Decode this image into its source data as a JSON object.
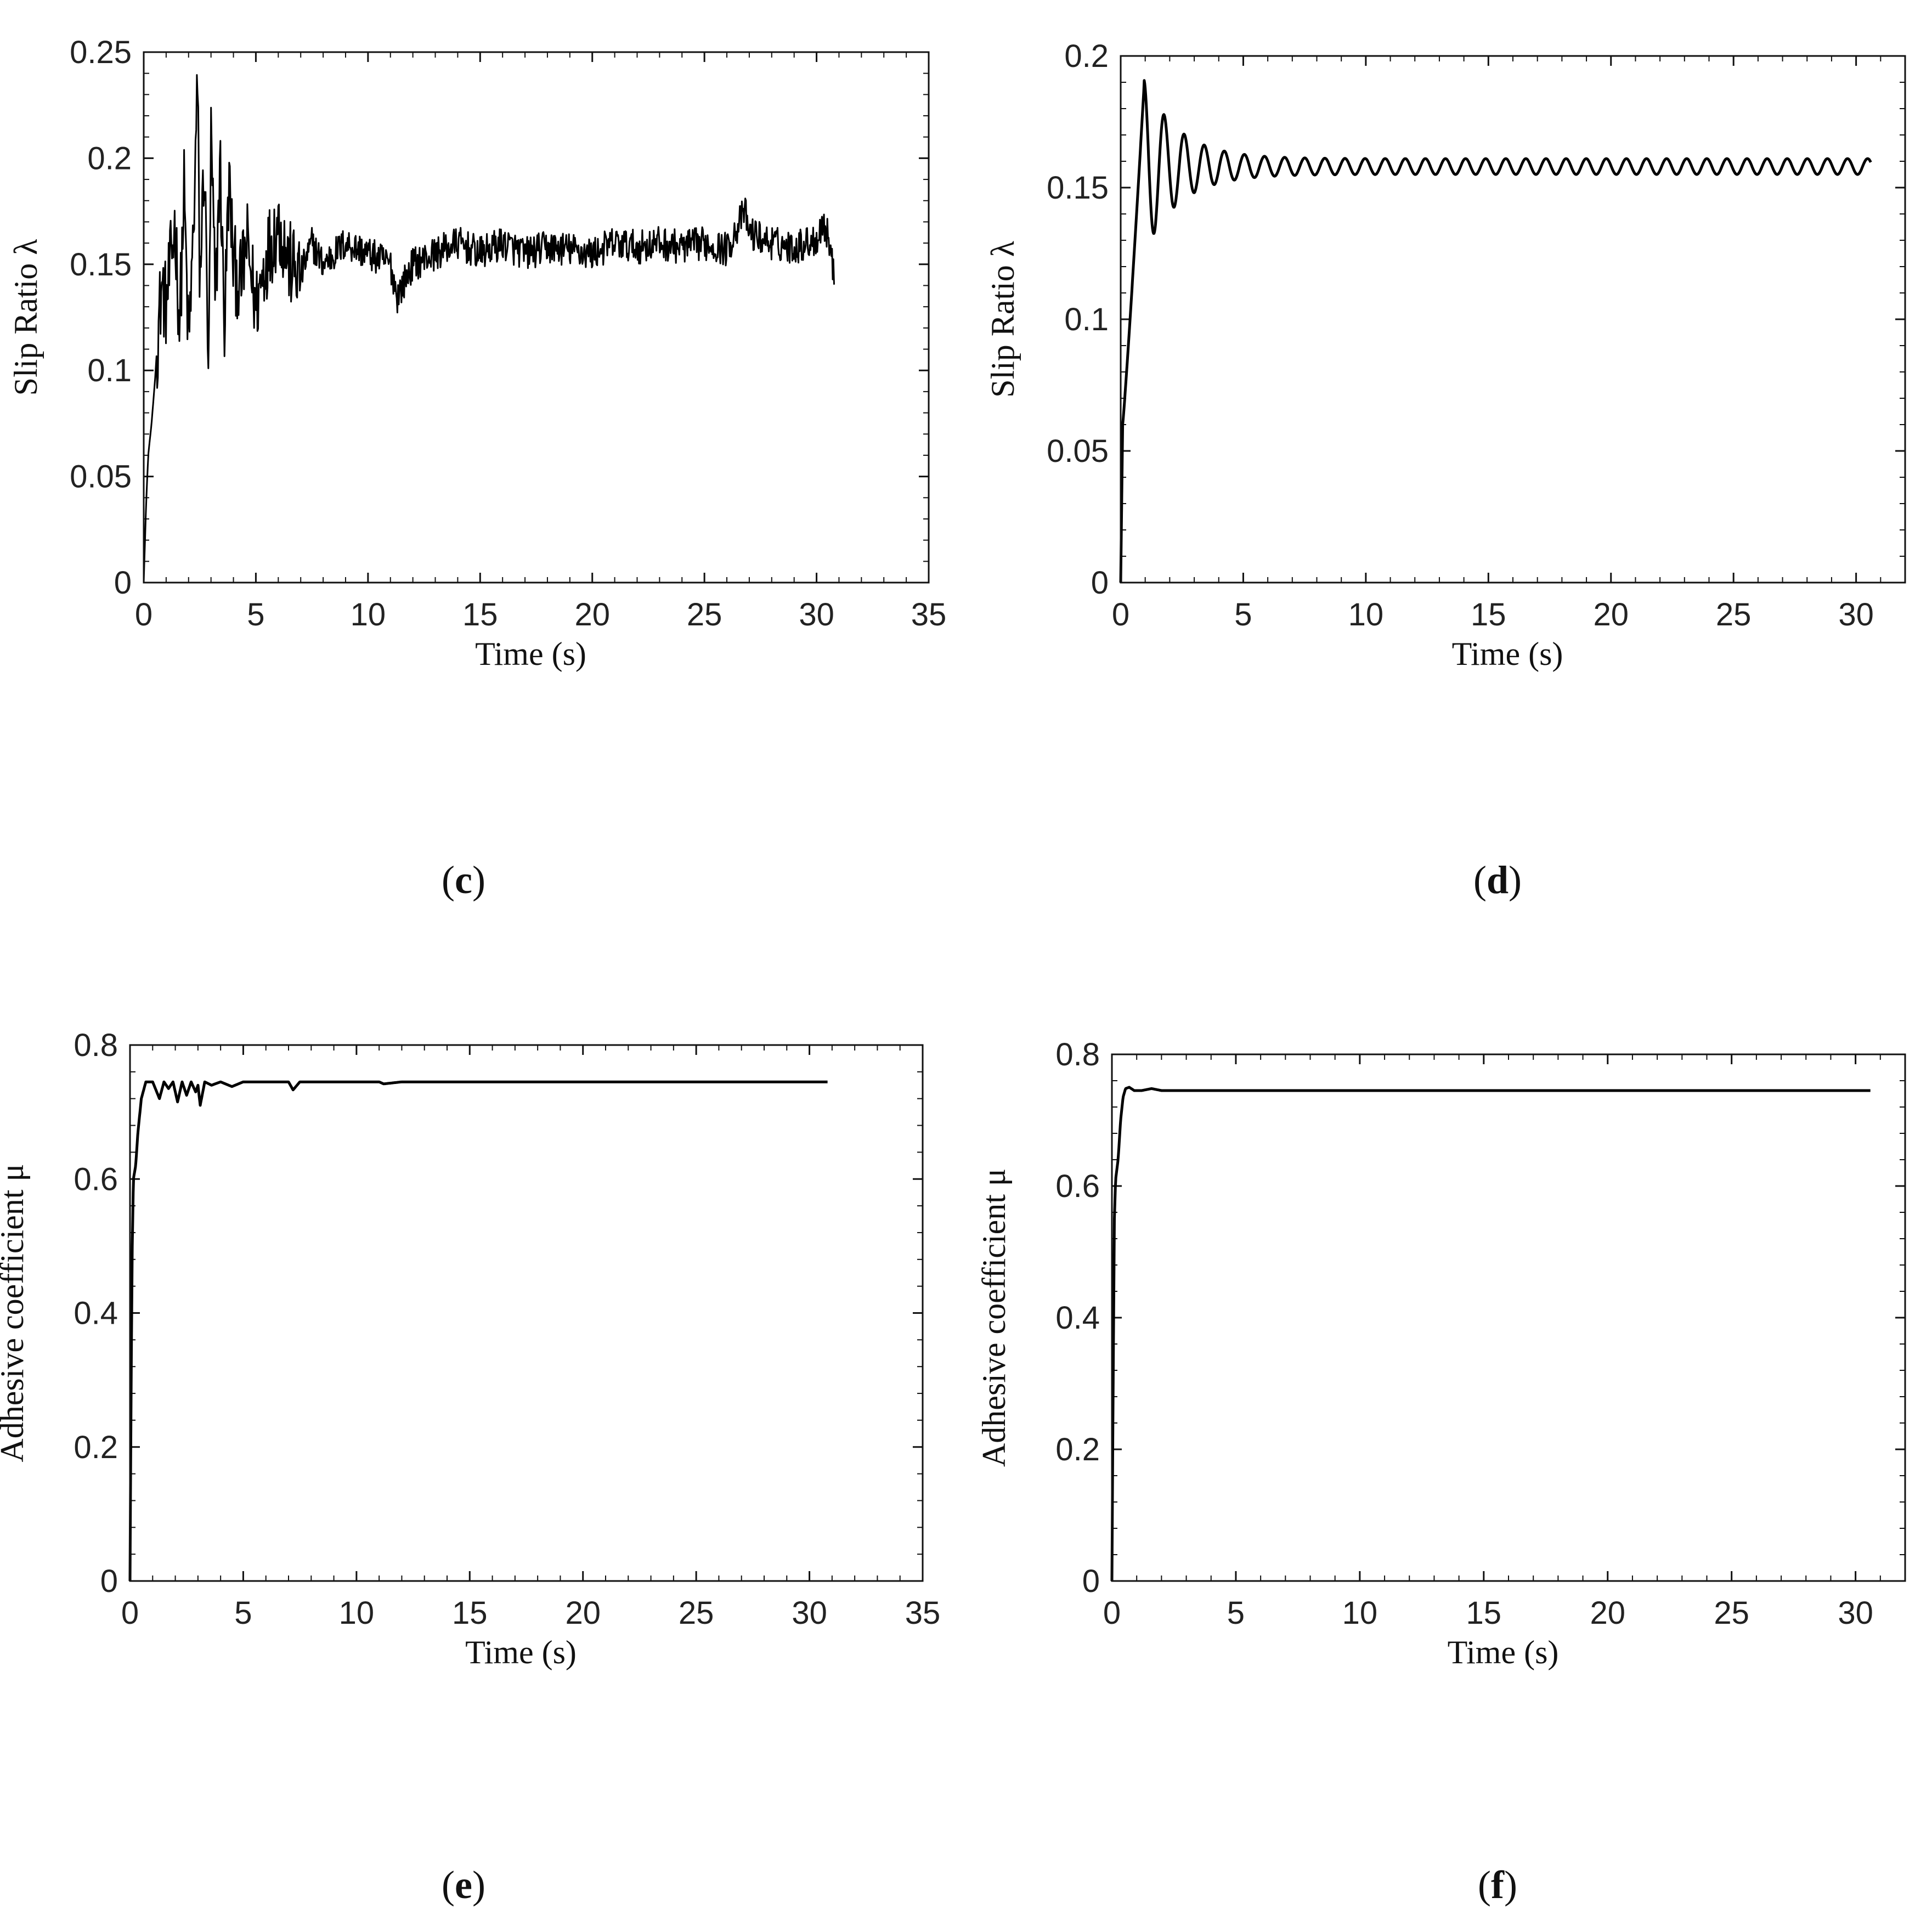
{
  "chart_data": [
    {
      "type": "line",
      "panel": "c",
      "xlabel": "Time (s)",
      "ylabel": "Slip Ratio λ",
      "xlim": [
        0,
        35
      ],
      "ylim": [
        0,
        0.25
      ],
      "xticks": [
        0,
        5,
        10,
        15,
        20,
        25,
        30,
        35
      ],
      "yticks": [
        0,
        0.05,
        0.1,
        0.15,
        0.2,
        0.25
      ],
      "xtick_labels": [
        "0",
        "5",
        "10",
        "15",
        "20",
        "25",
        "30",
        "35"
      ],
      "ytick_labels": [
        "0",
        "0.05",
        "0.1",
        "0.15",
        "0.2",
        "0.25"
      ],
      "grid": false,
      "series": [
        {
          "t_end": 30.8,
          "x": [
            0,
            0.1,
            0.2,
            0.35,
            0.5,
            0.65,
            0.8,
            1.0,
            1.2,
            1.4,
            1.6,
            1.8,
            2.0,
            2.2,
            2.4,
            2.5,
            2.7,
            2.9,
            3.0,
            3.2,
            3.4,
            3.6,
            3.8,
            4.0,
            4.3,
            4.6,
            5.0,
            5.5,
            6.0,
            6.5,
            7.0,
            7.5,
            8.0,
            9.0,
            10.0,
            11.0,
            11.3,
            12.0,
            13.0,
            14.0,
            15.0,
            16.0,
            17.0,
            18.0,
            19.0,
            20.0,
            21.0,
            22.0,
            23.0,
            24.0,
            25.0,
            26.0,
            26.8,
            27.0,
            28.0,
            29.0,
            29.5,
            30.0,
            30.3,
            30.6,
            30.8
          ],
          "y": [
            0,
            0.035,
            0.06,
            0.075,
            0.095,
            0.12,
            0.14,
            0.13,
            0.15,
            0.17,
            0.12,
            0.185,
            0.11,
            0.16,
            0.235,
            0.14,
            0.2,
            0.095,
            0.21,
            0.13,
            0.2,
            0.12,
            0.19,
            0.15,
            0.14,
            0.16,
            0.13,
            0.155,
            0.17,
            0.15,
            0.145,
            0.16,
            0.15,
            0.16,
            0.155,
            0.15,
            0.135,
            0.15,
            0.155,
            0.16,
            0.155,
            0.16,
            0.155,
            0.158,
            0.157,
            0.155,
            0.16,
            0.158,
            0.16,
            0.158,
            0.16,
            0.157,
            0.175,
            0.165,
            0.16,
            0.158,
            0.16,
            0.162,
            0.17,
            0.16,
            0.14
          ],
          "stroke_width": 3,
          "noise_amplitude": 0.008
        }
      ]
    },
    {
      "type": "line",
      "panel": "d",
      "xlabel": "Time (s)",
      "ylabel": "Slip Ratio λ",
      "xlim": [
        0,
        32
      ],
      "ylim": [
        0,
        0.2
      ],
      "xticks": [
        0,
        5,
        10,
        15,
        20,
        25,
        30
      ],
      "yticks": [
        0,
        0.05,
        0.1,
        0.15,
        0.2
      ],
      "xtick_labels": [
        "0",
        "5",
        "10",
        "15",
        "20",
        "25",
        "30"
      ],
      "ytick_labels": [
        "0",
        "0.05",
        "0.1",
        "0.15",
        "0.2"
      ],
      "grid": false,
      "series": [
        {
          "t_end": 30.6,
          "rise_end": 0.95,
          "peak": 0.188,
          "steady": 0.158,
          "osc_period": 0.82,
          "decay": 1.4,
          "steady_amp": 0.003,
          "stroke_width": 5
        }
      ]
    },
    {
      "type": "line",
      "panel": "e",
      "xlabel": "Time (s)",
      "ylabel": "Adhesive coefficient μ",
      "xlim": [
        0,
        35
      ],
      "ylim": [
        0,
        0.8
      ],
      "xticks": [
        0,
        5,
        10,
        15,
        20,
        25,
        30,
        35
      ],
      "yticks": [
        0,
        0.2,
        0.4,
        0.6,
        0.8
      ],
      "xtick_labels": [
        "0",
        "5",
        "10",
        "15",
        "20",
        "25",
        "30",
        "35"
      ],
      "ytick_labels": [
        "0",
        "0.2",
        "0.4",
        "0.6",
        "0.8"
      ],
      "grid": false,
      "series": [
        {
          "t_end": 30.8,
          "x": [
            0,
            0.05,
            0.1,
            0.15,
            0.25,
            0.35,
            0.5,
            0.7,
            1.0,
            1.3,
            1.5,
            1.7,
            1.9,
            2.1,
            2.3,
            2.5,
            2.7,
            2.9,
            3.0,
            3.1,
            3.3,
            3.6,
            4.0,
            4.5,
            5.0,
            6.0,
            7.0,
            7.2,
            7.5,
            8.0,
            10.0,
            11.0,
            11.2,
            12.0,
            15.0,
            20.0,
            25.0,
            30.0,
            30.8
          ],
          "y": [
            0,
            0.3,
            0.5,
            0.6,
            0.62,
            0.67,
            0.72,
            0.745,
            0.745,
            0.72,
            0.745,
            0.735,
            0.745,
            0.715,
            0.745,
            0.725,
            0.745,
            0.73,
            0.74,
            0.71,
            0.745,
            0.74,
            0.745,
            0.738,
            0.745,
            0.745,
            0.745,
            0.733,
            0.745,
            0.745,
            0.745,
            0.745,
            0.742,
            0.745,
            0.745,
            0.745,
            0.745,
            0.745,
            0.745
          ],
          "stroke_width": 5
        }
      ]
    },
    {
      "type": "line",
      "panel": "f",
      "xlabel": "Time (s)",
      "ylabel": "Adhesive coefficient μ",
      "xlim": [
        0,
        32
      ],
      "ylim": [
        0,
        0.8
      ],
      "xticks": [
        0,
        5,
        10,
        15,
        20,
        25,
        30
      ],
      "yticks": [
        0,
        0.2,
        0.4,
        0.6,
        0.8
      ],
      "xtick_labels": [
        "0",
        "5",
        "10",
        "15",
        "20",
        "25",
        "30"
      ],
      "ytick_labels": [
        "0",
        "0.2",
        "0.4",
        "0.6",
        "0.8"
      ],
      "grid": false,
      "series": [
        {
          "t_end": 30.6,
          "x": [
            0,
            0.05,
            0.1,
            0.15,
            0.25,
            0.35,
            0.45,
            0.55,
            0.7,
            0.9,
            1.2,
            1.6,
            2.0,
            3.0,
            10.0,
            20.0,
            30.6
          ],
          "y": [
            0,
            0.3,
            0.55,
            0.61,
            0.64,
            0.7,
            0.735,
            0.748,
            0.75,
            0.745,
            0.745,
            0.748,
            0.745,
            0.745,
            0.745,
            0.745,
            0.745
          ],
          "stroke_width": 5
        }
      ]
    }
  ],
  "panel_labels": [
    "(c)",
    "(d)",
    "(e)",
    "(f)"
  ],
  "panel_letters": [
    "c",
    "d",
    "e",
    "f"
  ]
}
